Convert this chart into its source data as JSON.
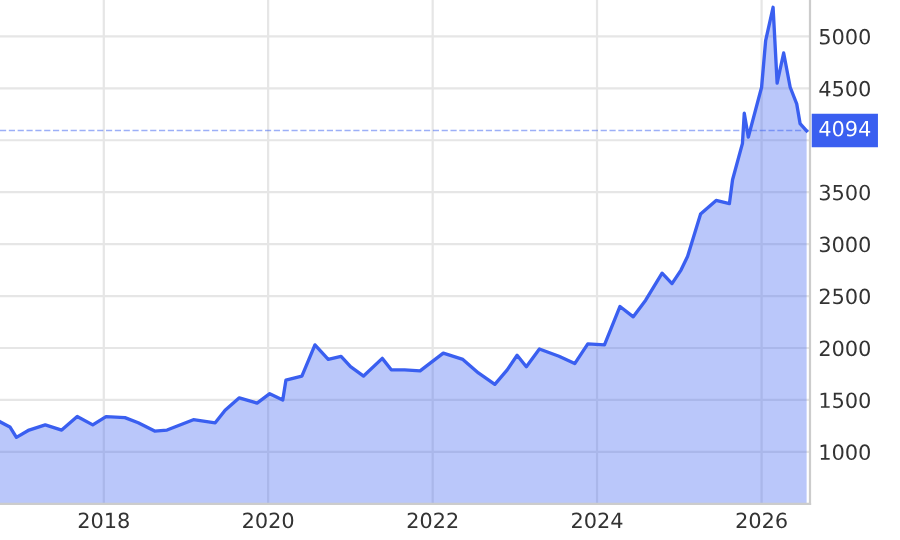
{
  "chart_data": {
    "type": "area",
    "x": [
      "2016-09-27",
      "2016-11-10",
      "2016-12-09",
      "2017-02-03",
      "2017-04-16",
      "2017-06-28",
      "2017-09-05",
      "2017-11-13",
      "2018-01-11",
      "2018-04-05",
      "2018-06-03",
      "2018-08-15",
      "2018-10-09",
      "2019-02-03",
      "2019-05-11",
      "2019-06-24",
      "2019-08-26",
      "2019-11-13",
      "2020-01-08",
      "2020-03-06",
      "2020-03-20",
      "2020-05-30",
      "2020-07-27",
      "2020-09-24",
      "2020-11-20",
      "2021-01-01",
      "2021-02-28",
      "2021-05-22",
      "2021-07-01",
      "2021-08-29",
      "2021-11-06",
      "2022-02-17",
      "2022-05-15",
      "2022-07-23",
      "2022-10-04",
      "2022-11-28",
      "2023-01-11",
      "2023-02-21",
      "2023-04-20",
      "2023-07-16",
      "2023-09-24",
      "2023-11-21",
      "2024-02-03",
      "2024-04-12",
      "2024-06-10",
      "2024-08-04",
      "2024-10-16",
      "2024-11-29",
      "2025-01-08",
      "2025-02-06",
      "2025-04-05",
      "2025-06-13",
      "2025-08-11",
      "2025-08-25",
      "2025-10-08",
      "2025-10-16",
      "2025-11-03",
      "2026-01-01",
      "2026-01-19",
      "2026-02-21",
      "2026-03-11",
      "2026-04-09",
      "2026-05-08",
      "2026-06-06",
      "2026-06-21",
      "2026-07-20"
    ],
    "series": [
      {
        "color": "#3a5ff0",
        "values": [
          1290,
          1240,
          1140,
          1210,
          1260,
          1210,
          1340,
          1260,
          1340,
          1330,
          1280,
          1200,
          1210,
          1310,
          1280,
          1400,
          1520,
          1470,
          1560,
          1500,
          1690,
          1730,
          2030,
          1890,
          1920,
          1820,
          1730,
          1900,
          1790,
          1790,
          1780,
          1950,
          1890,
          1760,
          1650,
          1790,
          1930,
          1820,
          1990,
          1920,
          1850,
          2040,
          2030,
          2400,
          2300,
          2460,
          2720,
          2620,
          2750,
          2880,
          3290,
          3420,
          3390,
          3620,
          3970,
          4260,
          4030,
          4510,
          4960,
          5280,
          4550,
          4840,
          4510,
          4350,
          4160,
          4090
        ]
      }
    ],
    "xlim": [
      "2016-09-27",
      "2026-08-04"
    ],
    "xticks": [
      {
        "value": "2018-01-01",
        "label": "2018"
      },
      {
        "value": "2020-01-01",
        "label": "2020"
      },
      {
        "value": "2022-01-01",
        "label": "2022"
      },
      {
        "value": "2024-01-01",
        "label": "2024"
      },
      {
        "value": "2026-01-01",
        "label": "2026"
      }
    ],
    "ylim": [
      500,
      5350
    ],
    "yticks": [
      1000,
      1500,
      2000,
      2500,
      3000,
      3500,
      {
        "value": 4000,
        "label": null
      },
      4500,
      5000
    ],
    "ref_lines": [
      {
        "axis": "y",
        "value": 4094,
        "label": "4094",
        "color": "#3a5ff0",
        "line_style": "dashed"
      }
    ],
    "grid": true,
    "legend": false
  }
}
